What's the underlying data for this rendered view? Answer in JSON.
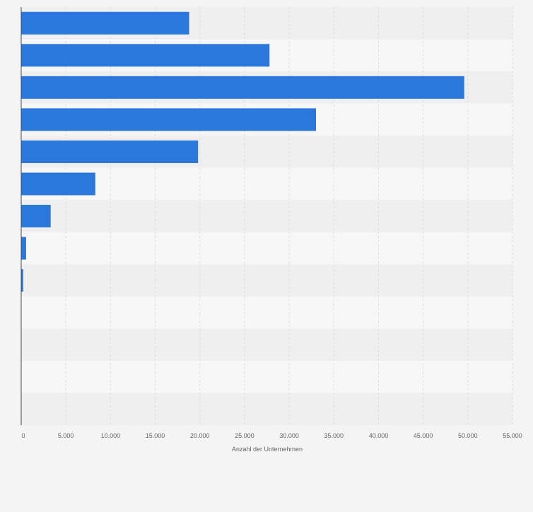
{
  "chart_data": {
    "type": "bar",
    "orientation": "horizontal",
    "title": "",
    "xlabel": "Anzahl der Unternehmen",
    "ylabel": "",
    "xlim": [
      0,
      55000
    ],
    "xticks": [
      0,
      5000,
      10000,
      15000,
      20000,
      25000,
      30000,
      35000,
      40000,
      45000,
      50000,
      55000
    ],
    "xtick_labels": [
      "0",
      "5.000",
      "10.000",
      "15.000",
      "20.000",
      "25.000",
      "30.000",
      "35.000",
      "40.000",
      "45.000",
      "50.000",
      "55.000"
    ],
    "grid": true,
    "categories": [
      "",
      "",
      "",
      "",
      "",
      "",
      "",
      "",
      "",
      "",
      "",
      "",
      ""
    ],
    "values": [
      18800,
      27800,
      49600,
      33000,
      19800,
      8300,
      3300,
      550,
      220,
      0,
      0,
      0,
      0
    ],
    "colors": {
      "bar": "#2a77dd",
      "band_dark": "#efefef",
      "band_light": "#f7f7f7",
      "grid": "#dddddd",
      "axis": "#444444",
      "text": "#666666"
    }
  }
}
